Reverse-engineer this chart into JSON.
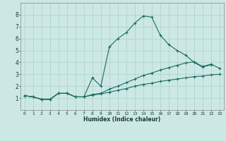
{
  "xlabel": "Humidex (Indice chaleur)",
  "xlim": [
    -0.5,
    23.5
  ],
  "ylim": [
    0,
    9
  ],
  "xticks": [
    0,
    1,
    2,
    3,
    4,
    5,
    6,
    7,
    8,
    9,
    10,
    11,
    12,
    13,
    14,
    15,
    16,
    17,
    18,
    19,
    20,
    21,
    22,
    23
  ],
  "yticks": [
    1,
    2,
    3,
    4,
    5,
    6,
    7,
    8
  ],
  "bg_color": "#cce8e5",
  "grid_color": "#aacfcc",
  "line_color": "#1a6b5e",
  "line1_x": [
    0,
    1,
    2,
    3,
    4,
    5,
    6,
    7,
    8,
    9,
    10,
    11,
    12,
    13,
    14,
    15,
    16,
    17,
    18,
    19,
    20,
    21,
    22
  ],
  "line1_y": [
    1.2,
    1.1,
    0.9,
    0.9,
    1.4,
    1.4,
    1.1,
    1.1,
    2.7,
    2.0,
    5.3,
    6.0,
    6.5,
    7.3,
    7.9,
    7.8,
    6.3,
    5.5,
    5.0,
    4.6,
    4.0,
    3.6,
    3.8
  ],
  "line2_x": [
    0,
    1,
    2,
    3,
    4,
    5,
    6,
    7,
    8,
    9,
    10,
    11,
    12,
    13,
    14,
    15,
    16,
    17,
    18,
    19,
    20,
    21,
    22,
    23
  ],
  "line2_y": [
    1.2,
    1.1,
    0.9,
    0.9,
    1.4,
    1.4,
    1.1,
    1.1,
    1.25,
    1.35,
    1.5,
    1.65,
    1.8,
    2.0,
    2.15,
    2.25,
    2.4,
    2.5,
    2.6,
    2.7,
    2.8,
    2.85,
    2.95,
    3.0
  ],
  "line3_x": [
    0,
    1,
    2,
    3,
    4,
    5,
    6,
    7,
    8,
    9,
    10,
    11,
    12,
    13,
    14,
    15,
    16,
    17,
    18,
    19,
    20,
    21,
    22,
    23
  ],
  "line3_y": [
    1.2,
    1.1,
    0.9,
    0.9,
    1.4,
    1.4,
    1.1,
    1.1,
    1.3,
    1.4,
    1.75,
    2.0,
    2.3,
    2.6,
    2.9,
    3.1,
    3.35,
    3.55,
    3.75,
    3.95,
    4.05,
    3.65,
    3.85,
    3.5
  ]
}
